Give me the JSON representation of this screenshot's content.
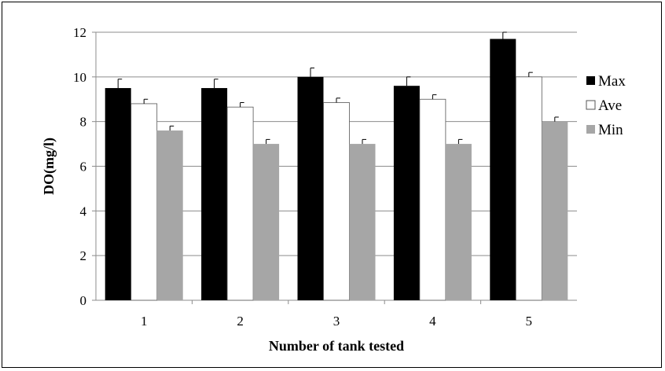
{
  "chart_data": {
    "type": "bar",
    "xlabel": "Number of tank tested",
    "ylabel": "DO(mg/l)",
    "categories": [
      "1",
      "2",
      "3",
      "4",
      "5"
    ],
    "ylim": [
      0,
      12
    ],
    "yticks": [
      0,
      2,
      4,
      6,
      8,
      10,
      12
    ],
    "grid": true,
    "legend_position": "right",
    "series": [
      {
        "name": "Max",
        "color": "#000000",
        "values": [
          9.5,
          9.5,
          10.0,
          9.6,
          11.7
        ],
        "errors": [
          0.4,
          0.4,
          0.4,
          0.4,
          0.3
        ]
      },
      {
        "name": "Ave",
        "color": "#ffffff",
        "values": [
          8.8,
          8.65,
          8.85,
          9.0,
          10.0
        ],
        "errors": [
          0.2,
          0.2,
          0.2,
          0.2,
          0.2
        ]
      },
      {
        "name": "Min",
        "color": "#a6a6a6",
        "values": [
          7.6,
          7.0,
          7.0,
          7.0,
          8.0
        ],
        "errors": [
          0.2,
          0.2,
          0.2,
          0.2,
          0.2
        ]
      }
    ]
  }
}
